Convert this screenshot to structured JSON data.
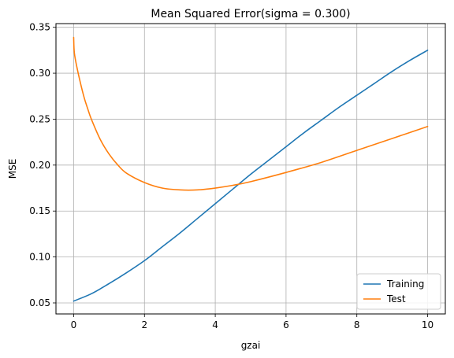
{
  "chart_data": {
    "type": "line",
    "title": "Mean Squared Error(sigma = 0.300)",
    "xlabel": "gzai",
    "ylabel": "MSE",
    "xlim": [
      -0.5,
      10.5
    ],
    "ylim": [
      0.038,
      0.354
    ],
    "xticks": [
      0,
      2,
      4,
      6,
      8,
      10
    ],
    "yticks": [
      0.05,
      0.1,
      0.15,
      0.2,
      0.25,
      0.3,
      0.35
    ],
    "grid": true,
    "legend_position": "lower-right",
    "series": [
      {
        "name": "Training",
        "color": "#1f77b4",
        "x": [
          0,
          0.5,
          1,
          1.5,
          2,
          2.5,
          3,
          3.5,
          4,
          4.5,
          5,
          5.5,
          6,
          6.5,
          7,
          7.5,
          8,
          8.5,
          9,
          9.5,
          10
        ],
        "y": [
          0.052,
          0.06,
          0.071,
          0.083,
          0.096,
          0.111,
          0.126,
          0.142,
          0.158,
          0.174,
          0.19,
          0.205,
          0.22,
          0.235,
          0.249,
          0.263,
          0.276,
          0.289,
          0.302,
          0.314,
          0.325
        ]
      },
      {
        "name": "Test",
        "color": "#ff7f0e",
        "x": [
          0,
          0.02,
          0.1,
          0.2,
          0.3,
          0.4,
          0.5,
          0.75,
          1,
          1.25,
          1.5,
          2,
          2.5,
          3,
          3.5,
          4,
          4.5,
          5,
          6,
          7,
          8,
          9,
          10
        ],
        "y": [
          0.339,
          0.322,
          0.305,
          0.288,
          0.273,
          0.261,
          0.25,
          0.228,
          0.212,
          0.2,
          0.191,
          0.181,
          0.175,
          0.173,
          0.173,
          0.175,
          0.178,
          0.182,
          0.192,
          0.203,
          0.216,
          0.229,
          0.242
        ]
      }
    ]
  }
}
